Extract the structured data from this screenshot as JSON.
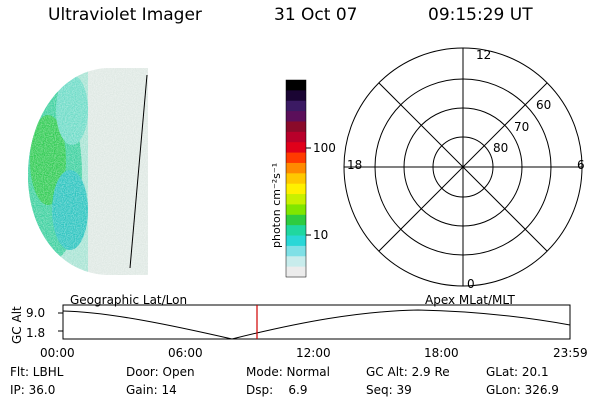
{
  "header": {
    "instrument": "Ultraviolet Imager",
    "date": "31 Oct 07",
    "time": "09:15:29 UT"
  },
  "colorbar": {
    "unit_label": "photon cm⁻²s⁻¹",
    "tick_100": "100",
    "tick_10": "10",
    "colors": [
      "#000000",
      "#1a0533",
      "#3b1a63",
      "#5b0f5a",
      "#8a0a2a",
      "#b8002a",
      "#e0001a",
      "#ff3a00",
      "#ff8a00",
      "#ffc800",
      "#fff000",
      "#c8f000",
      "#80e600",
      "#2ecc40",
      "#20d7a0",
      "#2ad7d7",
      "#7fe0e6",
      "#c8ecec",
      "#ececec"
    ]
  },
  "polar": {
    "label_12": "12",
    "label_18": "18",
    "label_6": "6",
    "label_0": "0",
    "label_60": "60",
    "label_70": "70",
    "label_80": "80"
  },
  "timeline": {
    "left_label": "Geographic Lat/Lon",
    "right_label": "Apex MLat/MLT",
    "axis_title": "GC Alt",
    "ymax": "9.0",
    "ymin": "1.8",
    "ticks": [
      "00:00",
      "06:00",
      "12:00",
      "18:00",
      "23:59"
    ],
    "marker_color": "#d00000"
  },
  "info": {
    "row1": {
      "flt": "Flt: LBHL",
      "door": "Door: Open",
      "mode": "Mode: Normal",
      "gcalt": "GC Alt: 2.9 Re",
      "glat": "GLat: 20.1"
    },
    "row2": {
      "ip": "IP: 36.0",
      "gain": "Gain: 14",
      "dsp": "Dsp:    6.9",
      "seq": "Seq: 39",
      "glon": "GLon: 326.9"
    }
  }
}
